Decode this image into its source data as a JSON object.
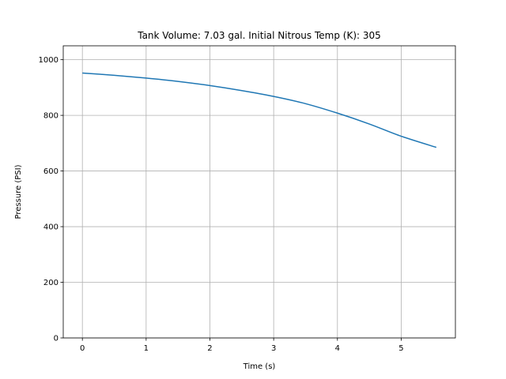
{
  "chart_data": {
    "type": "line",
    "title": "Tank Volume: 7.03 gal. Initial Nitrous Temp (K): 305",
    "xlabel": "Time (s)",
    "ylabel": "Pressure (PSI)",
    "xlim": [
      -0.3,
      5.85
    ],
    "ylim": [
      0,
      1050
    ],
    "xticks": [
      0,
      1,
      2,
      3,
      4,
      5
    ],
    "yticks": [
      0,
      200,
      400,
      600,
      800,
      1000
    ],
    "grid": true,
    "series": [
      {
        "color": "#1f77b4",
        "x": [
          0,
          0.5,
          1.0,
          1.5,
          2.0,
          2.5,
          3.0,
          3.5,
          4.0,
          4.5,
          5.0,
          5.55
        ],
        "y": [
          952,
          944,
          934,
          922,
          907,
          889,
          868,
          842,
          808,
          769,
          725,
          685
        ]
      }
    ]
  }
}
